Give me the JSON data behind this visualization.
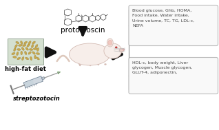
{
  "bg_color": "#ffffff",
  "title_text": "protodioscin",
  "hfd_label": "high-fat diet",
  "stz_label": "streptozotocin",
  "box1_lines": [
    "Blood glucose, Ghb, HOMA,",
    "Food intake, Water intake,",
    "Urine volume, TC, TG, LDL-c,",
    "NEFA"
  ],
  "box2_lines": [
    "HDL-c, body weight, Liver",
    "glycogen, Muscle glycogen,",
    "GLUT-4, adiponectin,"
  ],
  "arrow_color": "#111111",
  "box_edge_color": "#aaaaaa",
  "text_color": "#444444",
  "label_color": "#000000",
  "mol_color": "#555555",
  "rat_body_color": "#f7eeea",
  "rat_edge_color": "#d4bcb4",
  "seed_color": "#c8a84b",
  "seed_edge_color": "#9a7a30"
}
